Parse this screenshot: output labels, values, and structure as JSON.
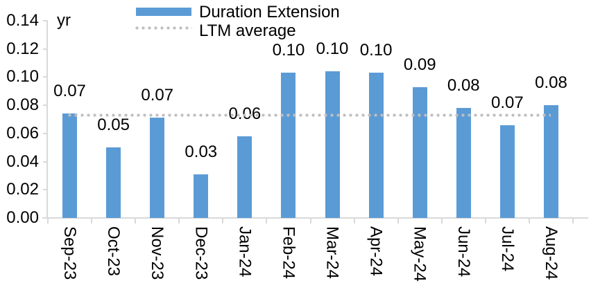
{
  "chart": {
    "unit_label": "yr",
    "legend": {
      "items": [
        {
          "label": "Duration Extension",
          "swatch": "bar-swatch",
          "color": "#5B9BD5"
        },
        {
          "label": "LTM average",
          "swatch": "dotted-line-swatch",
          "color": "#BFBFBF"
        }
      ]
    },
    "colors": {
      "bar": "#5B9BD5",
      "ltm_line": "#BFBFBF",
      "axis": "#D9D9D9",
      "text": "#000000"
    },
    "chart_data": {
      "type": "bar",
      "title": "",
      "xlabel": "",
      "ylabel": "yr",
      "categories": [
        "Sep-23",
        "Oct-23",
        "Nov-23",
        "Dec-23",
        "Jan-24",
        "Feb-24",
        "Mar-24",
        "Apr-24",
        "May-24",
        "Jun-24",
        "Jul-24",
        "Aug-24"
      ],
      "series": [
        {
          "name": "Duration Extension",
          "type": "bar",
          "color": "#5B9BD5",
          "values": [
            0.07,
            0.05,
            0.07,
            0.03,
            0.06,
            0.1,
            0.1,
            0.1,
            0.09,
            0.08,
            0.07,
            0.08
          ],
          "data_labels": [
            "0.07",
            "0.05",
            "0.07",
            "0.03",
            "0.06",
            "0.10",
            "0.10",
            "0.10",
            "0.09",
            "0.08",
            "0.07",
            "0.08"
          ],
          "plotted_values": [
            0.074,
            0.05,
            0.071,
            0.031,
            0.058,
            0.103,
            0.104,
            0.103,
            0.093,
            0.078,
            0.066,
            0.08
          ]
        },
        {
          "name": "LTM average",
          "type": "line",
          "style": "dotted",
          "color": "#BFBFBF",
          "value": 0.073
        }
      ],
      "ylim": [
        0,
        0.14
      ],
      "ytick_labels": [
        "0.00",
        "0.02",
        "0.04",
        "0.06",
        "0.08",
        "0.10",
        "0.12",
        "0.14"
      ],
      "grid": false,
      "legend_position": "top",
      "x_tick_label_rotation": "vertical"
    }
  }
}
